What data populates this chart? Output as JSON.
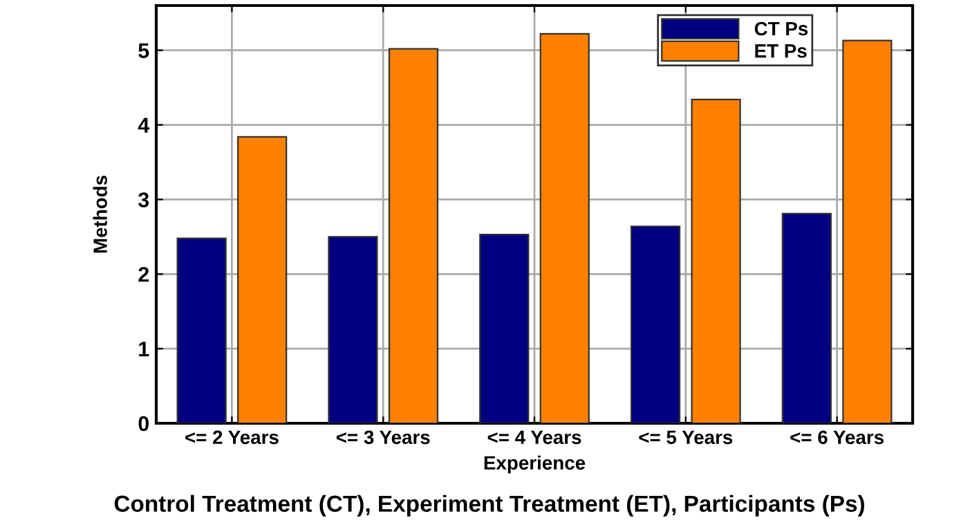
{
  "chart_data": {
    "type": "bar",
    "xlabel": "Experience",
    "ylabel": "Methods",
    "categories": [
      "<= 2 Years",
      "<= 3 Years",
      "<= 4 Years",
      "<= 5 Years",
      "<= 6 Years"
    ],
    "series": [
      {
        "name": "CT Ps",
        "color": "#000080",
        "values": [
          2.48,
          2.5,
          2.53,
          2.64,
          2.81
        ]
      },
      {
        "name": "ET Ps",
        "color": "#ff8000",
        "values": [
          3.84,
          5.02,
          5.22,
          4.34,
          5.13
        ]
      }
    ],
    "ylim": [
      0,
      5.6
    ],
    "yticks": [
      0,
      1,
      2,
      3,
      4,
      5
    ],
    "grid": true,
    "legend": "top right",
    "annotations": [
      "Control Treatment (CT), Experiment Treatment (ET), Participants (Ps)"
    ]
  }
}
